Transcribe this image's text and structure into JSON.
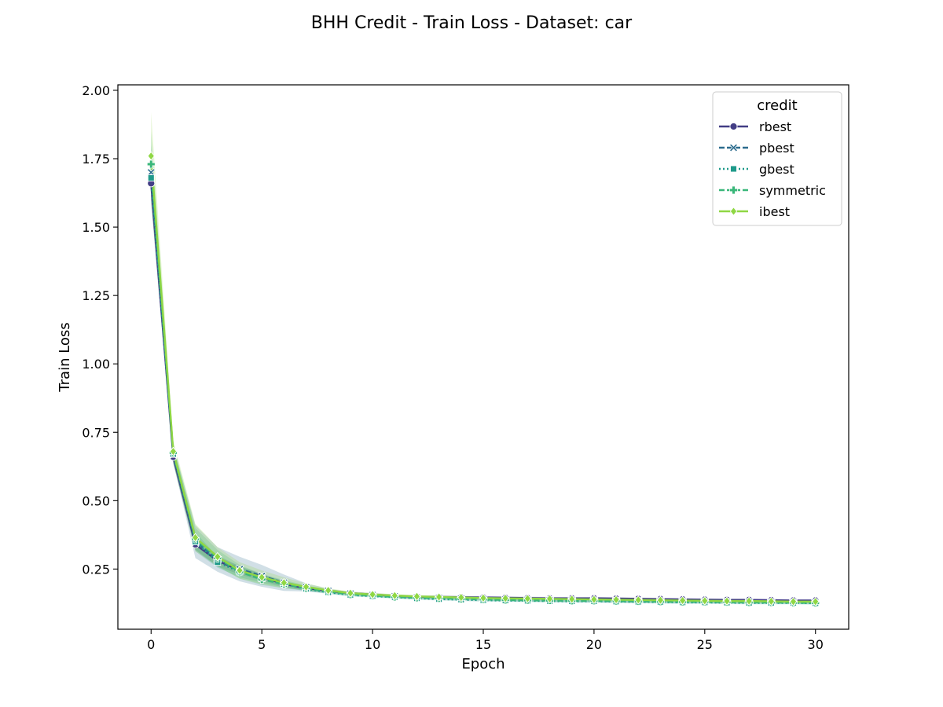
{
  "chart_data": {
    "type": "line",
    "title": "BHH Credit - Train Loss - Dataset: car",
    "xlabel": "Epoch",
    "ylabel": "Train Loss",
    "xlim": [
      -1.5,
      31.5
    ],
    "ylim": [
      0.03,
      2.02
    ],
    "xticks": [
      0,
      5,
      10,
      15,
      20,
      25,
      30
    ],
    "xtick_labels": [
      "0",
      "5",
      "10",
      "15",
      "20",
      "25",
      "30"
    ],
    "yticks": [
      0.25,
      0.5,
      0.75,
      1.0,
      1.25,
      1.5,
      1.75,
      2.0
    ],
    "ytick_labels": [
      "0.25",
      "0.50",
      "0.75",
      "1.00",
      "1.25",
      "1.50",
      "1.75",
      "2.00"
    ],
    "grid": false,
    "legend": {
      "title": "credit",
      "placement": "top-right"
    },
    "x": [
      0,
      1,
      2,
      3,
      4,
      5,
      6,
      7,
      8,
      9,
      10,
      11,
      12,
      13,
      14,
      15,
      16,
      17,
      18,
      19,
      20,
      21,
      22,
      23,
      24,
      25,
      26,
      27,
      28,
      29,
      30
    ],
    "series": [
      {
        "name": "rbest",
        "color": "#433e85",
        "marker": "circle",
        "dash": "solid",
        "values": [
          1.66,
          0.66,
          0.34,
          0.28,
          0.245,
          0.22,
          0.195,
          0.18,
          0.17,
          0.162,
          0.157,
          0.152,
          0.149,
          0.148,
          0.147,
          0.146,
          0.145,
          0.144,
          0.143,
          0.143,
          0.143,
          0.142,
          0.141,
          0.14,
          0.139,
          0.138,
          0.137,
          0.137,
          0.136,
          0.135,
          0.135
        ],
        "band": [
          0.07,
          0.025,
          0.02,
          0.02,
          0.015,
          0.012,
          0.01,
          0.008,
          0.006,
          0.005,
          0.005,
          0.005,
          0.005,
          0.005,
          0.005,
          0.005,
          0.005,
          0.005,
          0.005,
          0.005,
          0.005,
          0.005,
          0.005,
          0.005,
          0.005,
          0.005,
          0.005,
          0.005,
          0.005,
          0.005,
          0.005
        ]
      },
      {
        "name": "pbest",
        "color": "#2c6c8e",
        "marker": "x",
        "dash": "dashed",
        "values": [
          1.7,
          0.67,
          0.35,
          0.285,
          0.25,
          0.225,
          0.2,
          0.183,
          0.17,
          0.16,
          0.155,
          0.15,
          0.146,
          0.144,
          0.142,
          0.14,
          0.138,
          0.137,
          0.136,
          0.135,
          0.134,
          0.133,
          0.132,
          0.132,
          0.131,
          0.131,
          0.13,
          0.13,
          0.129,
          0.129,
          0.128
        ],
        "band": [
          0.1,
          0.03,
          0.06,
          0.045,
          0.045,
          0.04,
          0.03,
          0.015,
          0.008,
          0.006,
          0.005,
          0.005,
          0.005,
          0.005,
          0.005,
          0.005,
          0.005,
          0.005,
          0.005,
          0.005,
          0.005,
          0.005,
          0.005,
          0.005,
          0.005,
          0.005,
          0.005,
          0.005,
          0.005,
          0.005,
          0.005
        ]
      },
      {
        "name": "gbest",
        "color": "#1f9a8a",
        "marker": "square",
        "dash": "dotted",
        "values": [
          1.68,
          0.67,
          0.35,
          0.275,
          0.24,
          0.215,
          0.195,
          0.178,
          0.165,
          0.155,
          0.151,
          0.147,
          0.143,
          0.14,
          0.138,
          0.136,
          0.135,
          0.134,
          0.133,
          0.132,
          0.132,
          0.131,
          0.13,
          0.129,
          0.128,
          0.128,
          0.127,
          0.126,
          0.126,
          0.126,
          0.125
        ],
        "band": [
          0.08,
          0.03,
          0.035,
          0.02,
          0.02,
          0.015,
          0.012,
          0.008,
          0.006,
          0.005,
          0.005,
          0.005,
          0.005,
          0.005,
          0.005,
          0.005,
          0.005,
          0.005,
          0.005,
          0.005,
          0.005,
          0.005,
          0.005,
          0.005,
          0.005,
          0.005,
          0.005,
          0.005,
          0.005,
          0.005,
          0.005
        ]
      },
      {
        "name": "symmetric",
        "color": "#3ab77a",
        "marker": "plus",
        "dash": "dashed",
        "values": [
          1.73,
          0.675,
          0.36,
          0.29,
          0.24,
          0.212,
          0.195,
          0.18,
          0.168,
          0.157,
          0.153,
          0.148,
          0.145,
          0.143,
          0.141,
          0.139,
          0.137,
          0.136,
          0.135,
          0.134,
          0.134,
          0.133,
          0.132,
          0.131,
          0.13,
          0.13,
          0.129,
          0.128,
          0.128,
          0.127,
          0.126
        ],
        "band": [
          0.12,
          0.035,
          0.04,
          0.03,
          0.025,
          0.02,
          0.015,
          0.01,
          0.007,
          0.006,
          0.005,
          0.005,
          0.005,
          0.005,
          0.005,
          0.005,
          0.005,
          0.005,
          0.005,
          0.005,
          0.005,
          0.005,
          0.005,
          0.005,
          0.005,
          0.005,
          0.005,
          0.005,
          0.005,
          0.005,
          0.005
        ]
      },
      {
        "name": "ibest",
        "color": "#8fd744",
        "marker": "diamond",
        "dash": "solid",
        "values": [
          1.76,
          0.68,
          0.365,
          0.295,
          0.245,
          0.22,
          0.2,
          0.185,
          0.172,
          0.162,
          0.157,
          0.153,
          0.15,
          0.148,
          0.146,
          0.144,
          0.143,
          0.142,
          0.141,
          0.14,
          0.139,
          0.138,
          0.137,
          0.136,
          0.135,
          0.134,
          0.133,
          0.133,
          0.132,
          0.131,
          0.131
        ],
        "band": [
          0.16,
          0.04,
          0.05,
          0.035,
          0.03,
          0.025,
          0.02,
          0.012,
          0.008,
          0.006,
          0.006,
          0.005,
          0.005,
          0.005,
          0.005,
          0.005,
          0.005,
          0.005,
          0.005,
          0.005,
          0.005,
          0.005,
          0.005,
          0.005,
          0.005,
          0.005,
          0.005,
          0.005,
          0.005,
          0.005,
          0.005
        ]
      }
    ]
  }
}
